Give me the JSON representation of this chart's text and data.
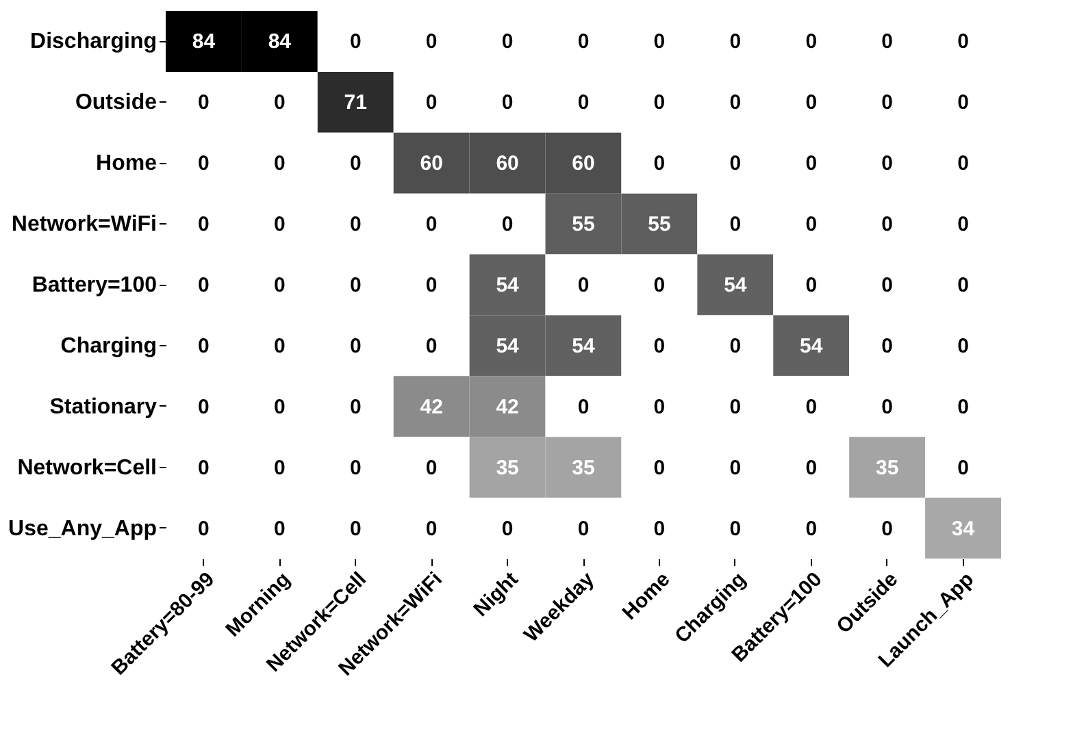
{
  "chart_data": {
    "type": "heatmap",
    "categories": [
      "Battery=80-99",
      "Morning",
      "Network=Cell",
      "Network=WiFi",
      "Night",
      "Weekday",
      "Home",
      "Charging",
      "Battery=100",
      "Outside",
      "Launch_App"
    ],
    "y_categories": [
      "Discharging",
      "Outside",
      "Home",
      "Network=WiFi",
      "Battery=100",
      "Charging",
      "Stationary",
      "Network=Cell",
      "Use_Any_App"
    ],
    "cells": [
      [
        84,
        84,
        0,
        0,
        0,
        0,
        0,
        0,
        0,
        0,
        0
      ],
      [
        0,
        0,
        71,
        0,
        0,
        0,
        0,
        0,
        0,
        0,
        0
      ],
      [
        0,
        0,
        0,
        60,
        60,
        60,
        0,
        0,
        0,
        0,
        0
      ],
      [
        0,
        0,
        0,
        0,
        0,
        55,
        55,
        0,
        0,
        0,
        0
      ],
      [
        0,
        0,
        0,
        0,
        54,
        0,
        0,
        54,
        0,
        0,
        0
      ],
      [
        0,
        0,
        0,
        0,
        54,
        54,
        0,
        0,
        54,
        0,
        0
      ],
      [
        0,
        0,
        0,
        42,
        42,
        0,
        0,
        0,
        0,
        0,
        0
      ],
      [
        0,
        0,
        0,
        0,
        35,
        35,
        0,
        0,
        0,
        35,
        0
      ],
      [
        0,
        0,
        0,
        0,
        0,
        0,
        0,
        0,
        0,
        0,
        34
      ]
    ],
    "data_labels": true
  }
}
